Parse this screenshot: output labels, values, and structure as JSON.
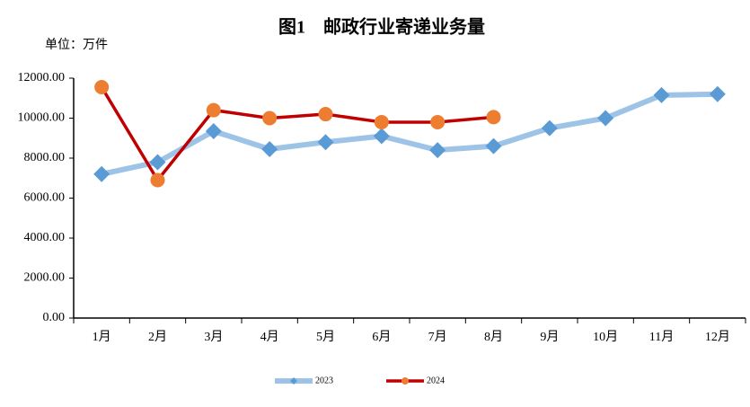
{
  "chart_data": {
    "type": "line",
    "title": "图1　邮政行业寄递业务量",
    "y_unit": "单位：万件",
    "categories": [
      "1月",
      "2月",
      "3月",
      "4月",
      "5月",
      "6月",
      "7月",
      "8月",
      "9月",
      "10月",
      "11月",
      "12月"
    ],
    "series": [
      {
        "name": "2023",
        "color": "#9dc3e6",
        "marker_color": "#5b9bd5",
        "marker": "diamond",
        "values": [
          7200,
          7800,
          9350,
          8450,
          8800,
          9100,
          8400,
          8600,
          9500,
          10000,
          11150,
          11200
        ]
      },
      {
        "name": "2024",
        "color": "#c00000",
        "marker_color": "#ed7d31",
        "marker": "circle",
        "values": [
          11550,
          6900,
          10400,
          10000,
          10200,
          9800,
          9800,
          10050,
          null,
          null,
          null,
          null
        ]
      }
    ],
    "ylim": [
      0,
      12000
    ],
    "yticks": [
      {
        "value": 0,
        "label": "0.00"
      },
      {
        "value": 2000,
        "label": "2000.00"
      },
      {
        "value": 4000,
        "label": "4000.00"
      },
      {
        "value": 6000,
        "label": "6000.00"
      },
      {
        "value": 8000,
        "label": "8000.00"
      },
      {
        "value": 10000,
        "label": "10000.00"
      },
      {
        "value": 12000,
        "label": "12000.00"
      }
    ],
    "legend": "bottom"
  }
}
